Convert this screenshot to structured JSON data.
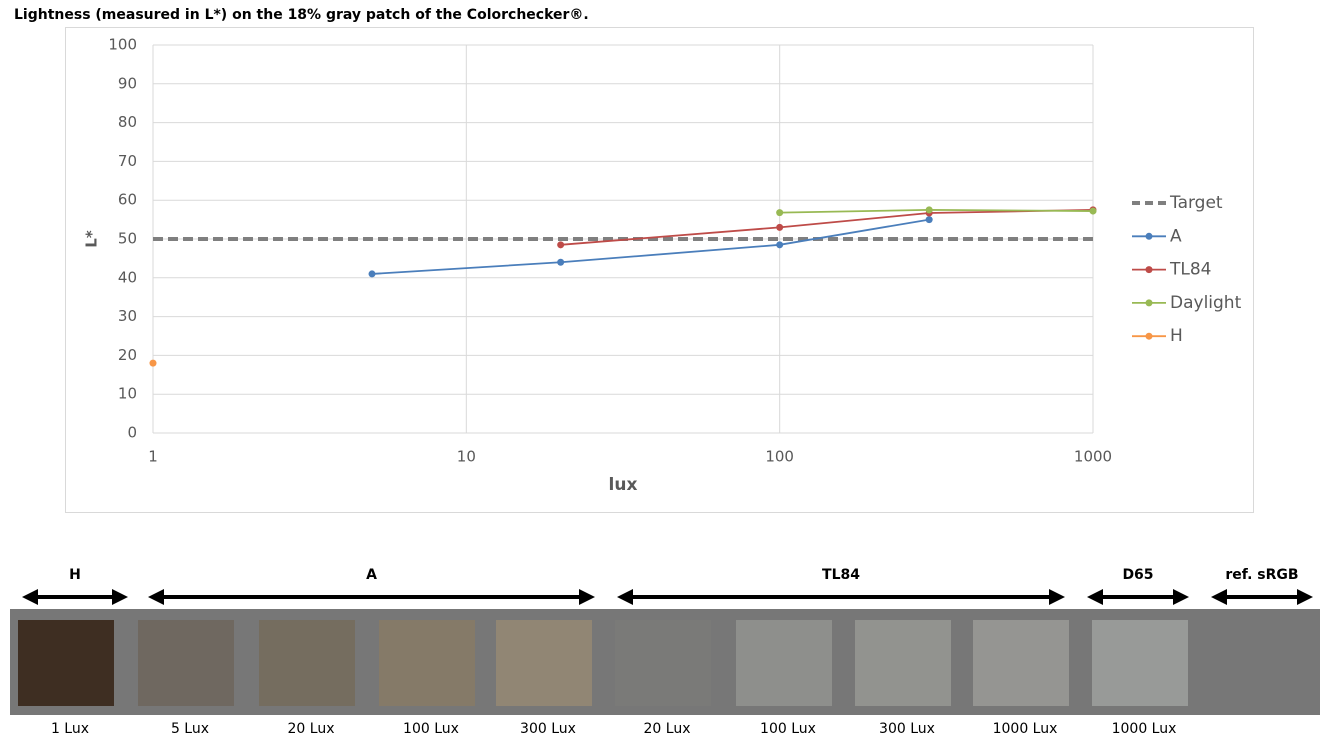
{
  "chart_data": {
    "type": "line",
    "title": "Lightness (measured in L*) on the 18% gray patch of the Colorchecker®.",
    "x_label": "lux",
    "y_label": "L*",
    "x_scale": "log",
    "xlim": [
      1,
      1000
    ],
    "xticks": [
      1,
      10,
      100,
      1000
    ],
    "ylim": [
      0,
      100
    ],
    "yticks": [
      0,
      10,
      20,
      30,
      40,
      50,
      60,
      70,
      80,
      90,
      100
    ],
    "grid": true,
    "legend": "right",
    "series": [
      {
        "name": "Target",
        "color": "#7f7f7f",
        "dashed": true,
        "markers": false,
        "x": [
          1,
          1000
        ],
        "values": [
          50,
          50
        ]
      },
      {
        "name": "A",
        "color": "#4a7ebb",
        "dashed": false,
        "markers": true,
        "x": [
          5,
          20,
          100,
          300
        ],
        "values": [
          41,
          44,
          48.5,
          55
        ]
      },
      {
        "name": "TL84",
        "color": "#be4b48",
        "dashed": false,
        "markers": true,
        "x": [
          20,
          100,
          300,
          1000
        ],
        "values": [
          48.5,
          53,
          56.7,
          57.5
        ]
      },
      {
        "name": "Daylight",
        "color": "#98b954",
        "dashed": false,
        "markers": true,
        "x": [
          100,
          300,
          1000
        ],
        "values": [
          56.8,
          57.5,
          57.2
        ]
      },
      {
        "name": "H",
        "color": "#f79646",
        "dashed": false,
        "markers": true,
        "x": [
          1
        ],
        "values": [
          18
        ]
      }
    ]
  },
  "patches": {
    "groups": [
      "H",
      "A",
      "TL84",
      "D65",
      "ref. sRGB"
    ],
    "swatches": [
      {
        "label": "1 Lux",
        "color": "#3e2e22"
      },
      {
        "label": "5 Lux",
        "color": "#6f6860"
      },
      {
        "label": "20 Lux",
        "color": "#756d5f"
      },
      {
        "label": "100 Lux",
        "color": "#857a68"
      },
      {
        "label": "300 Lux",
        "color": "#918674"
      },
      {
        "label": "20 Lux",
        "color": "#7a7a78"
      },
      {
        "label": "100 Lux",
        "color": "#8e8f8c"
      },
      {
        "label": "300 Lux",
        "color": "#92938f"
      },
      {
        "label": "1000 Lux",
        "color": "#959592"
      },
      {
        "label": "1000 Lux",
        "color": "#989a98"
      }
    ]
  }
}
